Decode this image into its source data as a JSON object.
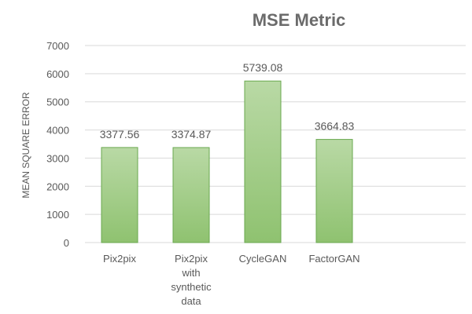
{
  "chart_data": {
    "type": "bar",
    "title": "MSE Metric",
    "ylabel": "MEAN SQUARE ERROR",
    "xlabel": "",
    "categories": [
      [
        "Pix2pix"
      ],
      [
        "Pix2pix",
        "with",
        "synthetic",
        "data"
      ],
      [
        "CycleGAN"
      ],
      [
        "FactorGAN"
      ]
    ],
    "values": [
      3377.56,
      3374.87,
      5739.08,
      3664.83
    ],
    "value_labels": [
      "3377.56",
      "3374.87",
      "5739.08",
      "3664.83"
    ],
    "ylim": [
      0,
      7000
    ],
    "yticks": [
      0,
      1000,
      2000,
      3000,
      4000,
      5000,
      6000,
      7000
    ],
    "grid": true,
    "legend": "none",
    "colors": {
      "bar_top": "#b9d9a5",
      "bar_bottom": "#8fc270",
      "bar_border": "#6aa84f",
      "grid": "#d9d9d9",
      "text": "#595959"
    }
  }
}
